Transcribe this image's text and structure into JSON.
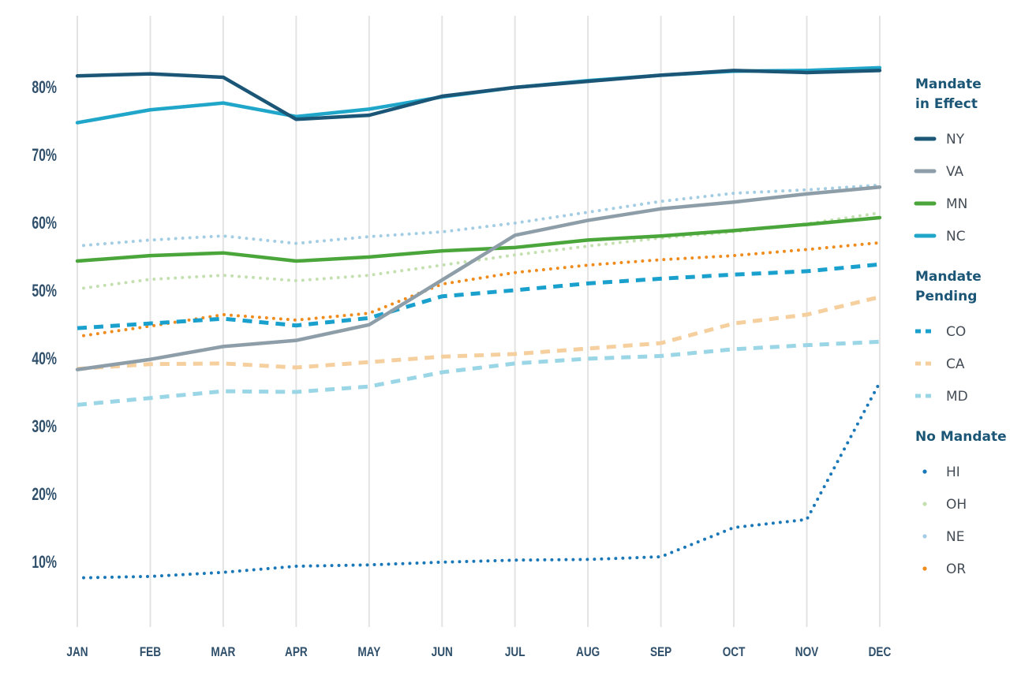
{
  "chart_data": {
    "type": "line",
    "title": "",
    "xlabel": "",
    "ylabel": "",
    "categories": [
      "JAN",
      "FEB",
      "MAR",
      "APR",
      "MAY",
      "JUN",
      "JUL",
      "AUG",
      "SEP",
      "OCT",
      "NOV",
      "DEC"
    ],
    "y_ticks": [
      "10%",
      "20%",
      "30%",
      "40%",
      "50%",
      "60%",
      "70%",
      "80%"
    ],
    "ylim": [
      0,
      90
    ],
    "grid": "vertical",
    "legend_placement": "right",
    "groups": [
      {
        "title_lines": [
          "Mandate",
          "in Effect"
        ],
        "style": "solid",
        "series": [
          {
            "name": "NY",
            "color": "#1b5677",
            "values": [
              81.6,
              81.9,
              81.4,
              75.2,
              75.8,
              78.6,
              79.9,
              80.8,
              81.7,
              82.4,
              82.1,
              82.4
            ]
          },
          {
            "name": "VA",
            "color": "#8e9ea9",
            "values": [
              38.3,
              39.8,
              41.7,
              42.6,
              44.9,
              51.5,
              58.1,
              60.3,
              62.0,
              63.0,
              64.2,
              65.2
            ]
          },
          {
            "name": "MN",
            "color": "#4aa63a",
            "values": [
              54.3,
              55.1,
              55.5,
              54.3,
              54.9,
              55.8,
              56.3,
              57.4,
              58.0,
              58.8,
              59.7,
              60.7
            ]
          },
          {
            "name": "NC",
            "color": "#1fa6c9",
            "values": [
              74.7,
              76.6,
              77.6,
              75.6,
              76.7,
              78.5,
              79.9,
              80.9,
              81.7,
              82.3,
              82.4,
              82.8
            ]
          }
        ]
      },
      {
        "title_lines": [
          "Mandate",
          "Pending"
        ],
        "style": "dashed",
        "series": [
          {
            "name": "CO",
            "color": "#1aa0cc",
            "values": [
              44.4,
              45.1,
              45.8,
              44.8,
              45.9,
              49.1,
              50.0,
              51.0,
              51.7,
              52.3,
              52.8,
              53.8
            ]
          },
          {
            "name": "CA",
            "color": "#f5cf9e",
            "values": [
              38.4,
              39.1,
              39.2,
              38.6,
              39.4,
              40.2,
              40.6,
              41.4,
              42.2,
              45.1,
              46.4,
              49.0
            ]
          },
          {
            "name": "MD",
            "color": "#9ad6e6",
            "values": [
              33.1,
              34.1,
              35.1,
              35.0,
              35.8,
              37.9,
              39.2,
              39.9,
              40.3,
              41.3,
              41.9,
              42.4
            ]
          }
        ]
      },
      {
        "title_lines": [
          "No Mandate"
        ],
        "style": "dotted",
        "series": [
          {
            "name": "HI",
            "color": "#1a78b8",
            "values": [
              7.6,
              7.8,
              8.4,
              9.3,
              9.5,
              9.9,
              10.2,
              10.3,
              10.7,
              15.0,
              16.2,
              36.4
            ]
          },
          {
            "name": "OH",
            "color": "#c4e0b0",
            "values": [
              50.3,
              51.6,
              52.2,
              51.4,
              52.2,
              53.7,
              55.2,
              56.5,
              57.7,
              58.6,
              59.8,
              61.4
            ]
          },
          {
            "name": "NE",
            "color": "#a3cde3",
            "values": [
              56.6,
              57.4,
              58.0,
              56.9,
              57.9,
              58.6,
              59.9,
              61.5,
              63.1,
              64.3,
              64.8,
              65.5
            ]
          },
          {
            "name": "OR",
            "color": "#f08c1e",
            "values": [
              43.3,
              44.7,
              46.4,
              45.6,
              46.6,
              50.9,
              52.6,
              53.7,
              54.5,
              55.1,
              56.0,
              57.0
            ]
          }
        ]
      }
    ]
  }
}
